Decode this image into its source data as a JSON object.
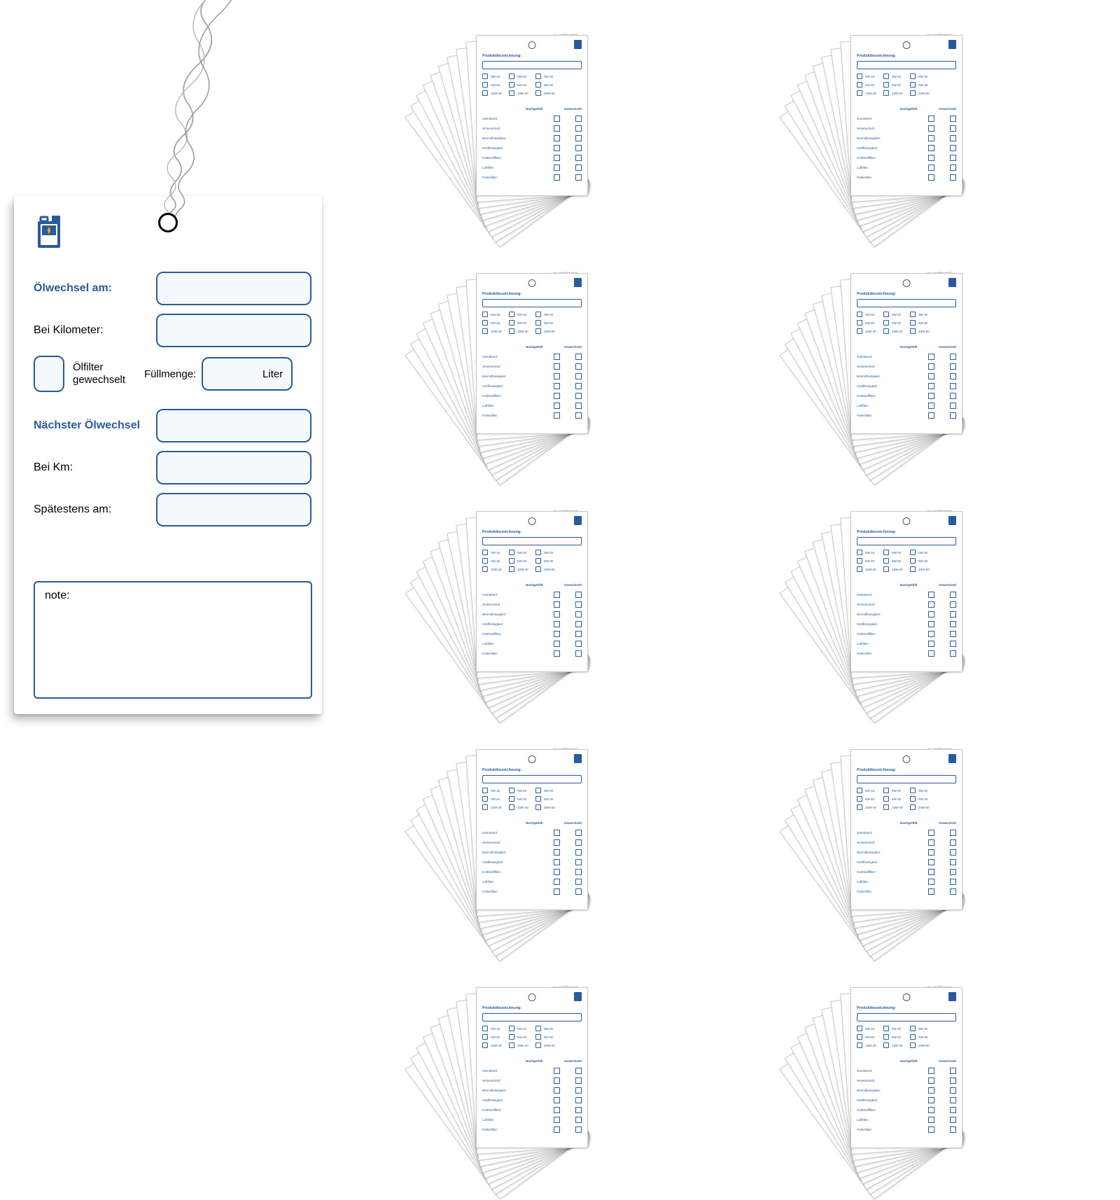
{
  "colors": {
    "primary": "#2a5a9b",
    "inputBg": "#f4f9fe",
    "background": "#ffffff",
    "text": "#000000"
  },
  "mainTag": {
    "labels": {
      "olwechselAm": "Ölwechsel am:",
      "beiKilometer": "Bei Kilometer:",
      "olfilterGewechselt": "Ölfilter gewechselt",
      "fullmenge": "Füllmenge:",
      "liter": "Liter",
      "nachsterOlwechsel": "Nächster Ölwechsel",
      "beiKm": "Bei Km:",
      "spatestensAm": "Spätestens am:",
      "note": "note:"
    }
  },
  "miniCard": {
    "title": "Produktbezeichnung:",
    "oilGrades": {
      "col1": [
        "0W-16",
        "0W-40",
        "10W-40"
      ],
      "col2": [
        "0W-20",
        "5W-20",
        "15W-40"
      ],
      "col3": [
        "0W-30",
        "5W-30",
        "20W-50"
      ]
    },
    "headers": [
      "Nachgefüllt",
      "Gewechselt"
    ],
    "checklist": [
      "Getriebeöl:",
      "Hinterachsöl:",
      "Bremsflüssigkeit:",
      "Kühlflüssigkeit:",
      "Kraftstofffilter:",
      "Luftfilter:",
      "Pollenfilter:"
    ]
  },
  "grid": {
    "stacks": 10,
    "cardsPerStack": 10
  }
}
